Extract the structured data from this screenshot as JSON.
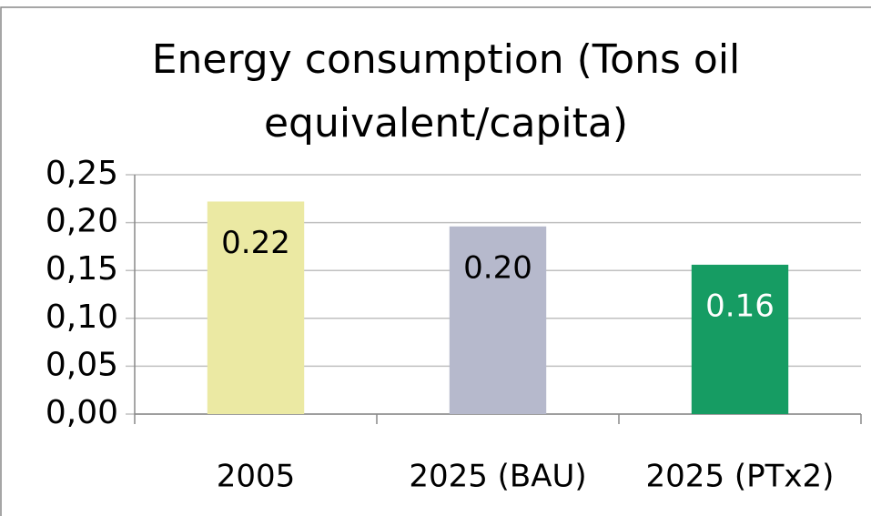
{
  "chart_data": {
    "type": "bar",
    "title": [
      "Energy consumption (Tons oil",
      "equivalent/capita)"
    ],
    "categories": [
      "2005",
      "2025 (BAU)",
      "2025 (PTx2)"
    ],
    "values": [
      0.222,
      0.196,
      0.156
    ],
    "value_labels": [
      "0.22",
      "0.20",
      "0.16"
    ],
    "colors": [
      "#ebe9a3",
      "#b6b9cc",
      "#169c63"
    ],
    "ylim": [
      0,
      0.25
    ],
    "yticks": [
      {
        "value": 0,
        "label": "0,00"
      },
      {
        "value": 0.05,
        "label": "0,05"
      },
      {
        "value": 0.1,
        "label": "0,10"
      },
      {
        "value": 0.15,
        "label": "0,15"
      },
      {
        "value": 0.2,
        "label": "0,20"
      },
      {
        "value": 0.25,
        "label": "0,25"
      }
    ],
    "grid": true
  }
}
